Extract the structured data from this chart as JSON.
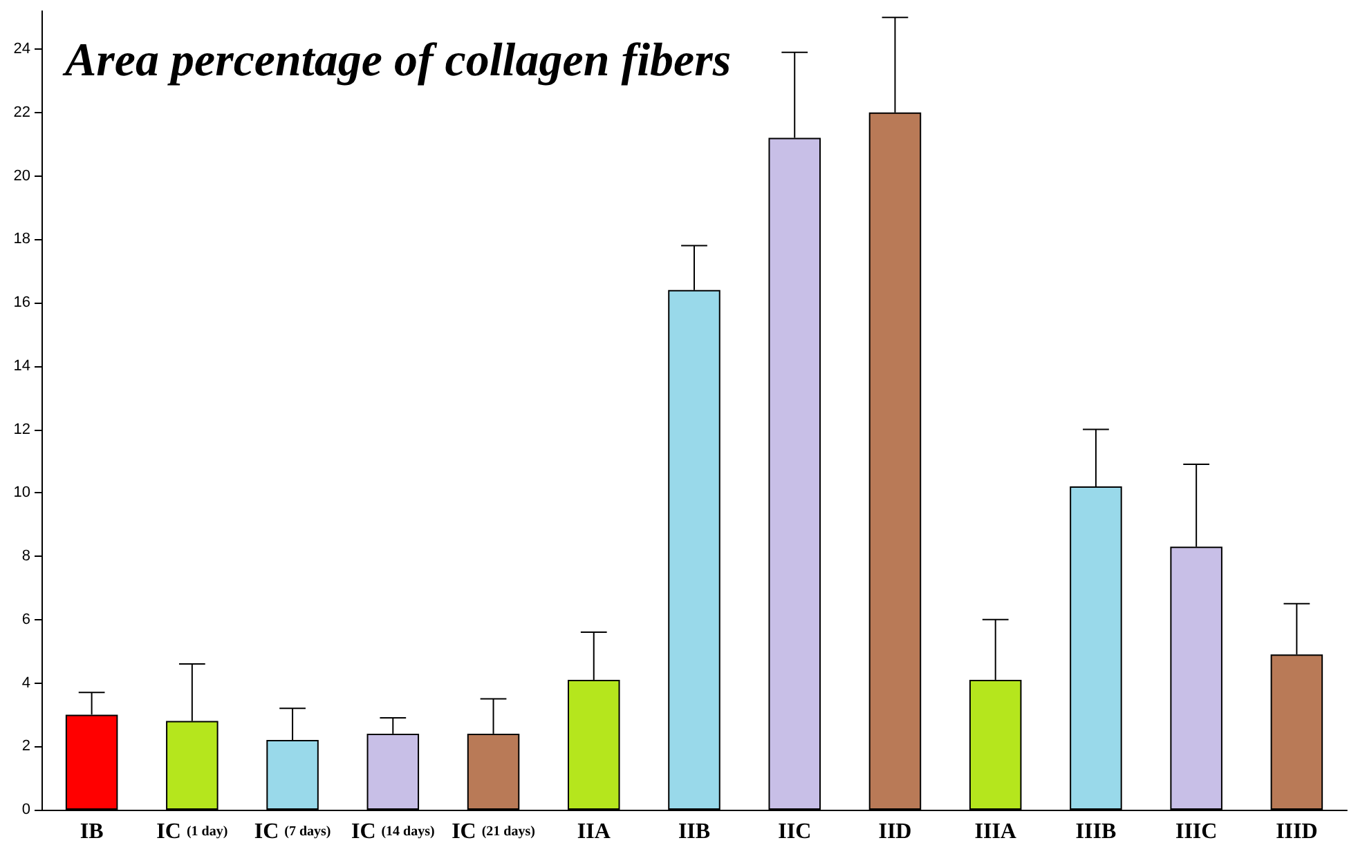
{
  "chart_data": {
    "type": "bar",
    "title": "Area percentage of collagen fibers",
    "categories": [
      "IB",
      "IC (1 day)",
      "IC (7 days)",
      "IC (14 days)",
      "IC (21 days)",
      "IIA",
      "IIB",
      "IIC",
      "IID",
      "IIIA",
      "IIIB",
      "IIIC",
      "IIID"
    ],
    "values": [
      3.0,
      2.8,
      2.2,
      2.4,
      2.4,
      4.1,
      16.4,
      21.2,
      22.0,
      4.1,
      10.2,
      8.3,
      4.9
    ],
    "colors": [
      "#ff0000",
      "#b5e61d",
      "#99d9ea",
      "#c8bfe7",
      "#b97a57",
      "#b5e61d",
      "#99d9ea",
      "#c8bfe7",
      "#b97a57",
      "#b5e61d",
      "#99d9ea",
      "#c8bfe7",
      "#b97a57"
    ],
    "errors": [
      [
        3.0,
        3.7
      ],
      [
        2.8,
        4.6
      ],
      [
        2.2,
        3.2
      ],
      [
        2.4,
        2.9
      ],
      [
        2.4,
        3.5
      ],
      [
        4.1,
        5.6
      ],
      [
        16.4,
        17.8
      ],
      [
        21.2,
        23.9
      ],
      [
        22.0,
        25.0
      ],
      [
        4.1,
        6.0
      ],
      [
        10.2,
        12.0
      ],
      [
        8.3,
        10.9
      ],
      [
        4.9,
        6.5
      ]
    ],
    "ylim": [
      0,
      25.2
    ],
    "yticks": [
      0,
      2,
      4,
      6,
      8,
      10,
      12,
      14,
      16,
      18,
      20,
      22,
      24
    ],
    "grid": false
  }
}
